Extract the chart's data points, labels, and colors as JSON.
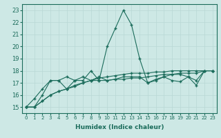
{
  "xlabel": "Humidex (Indice chaleur)",
  "xlim": [
    -0.5,
    23.5
  ],
  "ylim": [
    14.5,
    23.5
  ],
  "xticks": [
    0,
    1,
    2,
    3,
    4,
    5,
    6,
    7,
    8,
    9,
    10,
    11,
    12,
    13,
    14,
    15,
    16,
    17,
    18,
    19,
    20,
    21,
    22,
    23
  ],
  "yticks": [
    15,
    16,
    17,
    18,
    19,
    20,
    21,
    22,
    23
  ],
  "bg_color": "#cde8e5",
  "grid_color": "#b8d8d5",
  "line_color": "#1a6b5a",
  "line1_x": [
    0,
    1,
    2,
    3,
    4,
    5,
    6,
    7,
    8,
    9,
    10,
    11,
    12,
    13,
    14,
    15,
    16,
    17,
    18,
    19,
    20,
    21,
    22,
    23
  ],
  "line1_y": [
    15.0,
    15.0,
    15.5,
    16.0,
    16.3,
    16.5,
    16.7,
    17.0,
    17.2,
    17.4,
    17.5,
    17.6,
    17.7,
    17.8,
    17.8,
    17.8,
    17.9,
    17.9,
    18.0,
    18.0,
    18.0,
    18.0,
    18.0,
    18.0
  ],
  "line2_x": [
    0,
    1,
    2,
    3,
    4,
    5,
    6,
    7,
    8,
    9,
    10,
    11,
    12,
    13,
    14,
    15,
    16,
    17,
    18,
    19,
    20,
    21,
    22,
    23
  ],
  "line2_y": [
    15.0,
    15.7,
    16.5,
    17.2,
    17.2,
    16.5,
    17.2,
    17.2,
    18.0,
    17.2,
    20.0,
    21.5,
    23.0,
    21.8,
    19.0,
    17.0,
    17.3,
    17.5,
    17.2,
    17.1,
    17.5,
    16.8,
    18.0,
    18.0
  ],
  "line3_x": [
    0,
    1,
    2,
    3,
    4,
    5,
    6,
    7,
    8,
    9,
    10,
    11,
    12,
    13,
    14,
    15,
    16,
    17,
    18,
    19,
    20,
    21,
    22,
    23
  ],
  "line3_y": [
    15.0,
    15.0,
    16.0,
    17.2,
    17.2,
    17.5,
    17.2,
    17.5,
    17.2,
    17.5,
    17.2,
    17.3,
    17.5,
    17.5,
    17.5,
    17.0,
    17.2,
    17.5,
    17.7,
    17.7,
    17.5,
    17.2,
    18.0,
    18.0
  ],
  "line4_x": [
    0,
    1,
    2,
    3,
    4,
    5,
    6,
    7,
    8,
    9,
    10,
    11,
    12,
    13,
    14,
    15,
    16,
    17,
    18,
    19,
    20,
    21,
    22,
    23
  ],
  "line4_y": [
    15.0,
    15.0,
    15.5,
    16.0,
    16.3,
    16.5,
    16.8,
    17.0,
    17.2,
    17.2,
    17.2,
    17.3,
    17.3,
    17.4,
    17.4,
    17.5,
    17.6,
    17.7,
    17.7,
    17.8,
    17.8,
    17.8,
    18.0,
    18.0
  ]
}
